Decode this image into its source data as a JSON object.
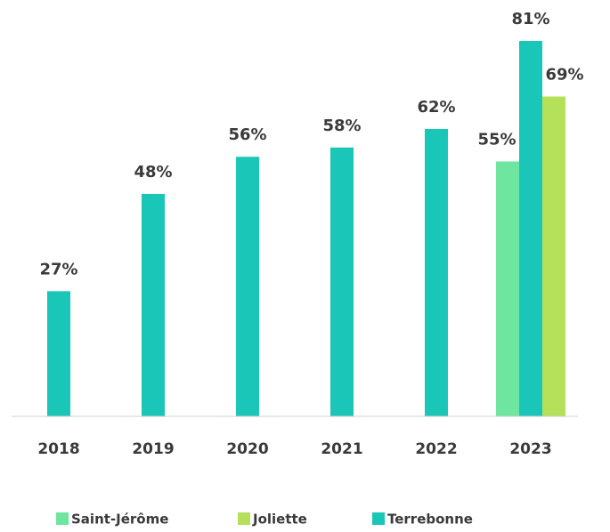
{
  "chart_data": {
    "type": "bar",
    "categories": [
      "2018",
      "2019",
      "2020",
      "2021",
      "2022",
      "2023"
    ],
    "series": [
      {
        "name": "Saint-Jérôme",
        "color": "#6ee69f",
        "values": [
          null,
          null,
          null,
          null,
          null,
          55
        ],
        "value_labels": [
          null,
          null,
          null,
          null,
          null,
          "55%"
        ]
      },
      {
        "name": "Terrebonne",
        "color": "#1ac6b7",
        "values": [
          27,
          48,
          56,
          58,
          62,
          81
        ],
        "value_labels": [
          "27%",
          "48%",
          "56%",
          "58%",
          "62%",
          "81%"
        ]
      },
      {
        "name": "Joliette",
        "color": "#b5e05a",
        "values": [
          null,
          null,
          null,
          null,
          null,
          69
        ],
        "value_labels": [
          null,
          null,
          null,
          null,
          null,
          "69%"
        ]
      }
    ],
    "ylim": [
      0,
      81
    ]
  }
}
